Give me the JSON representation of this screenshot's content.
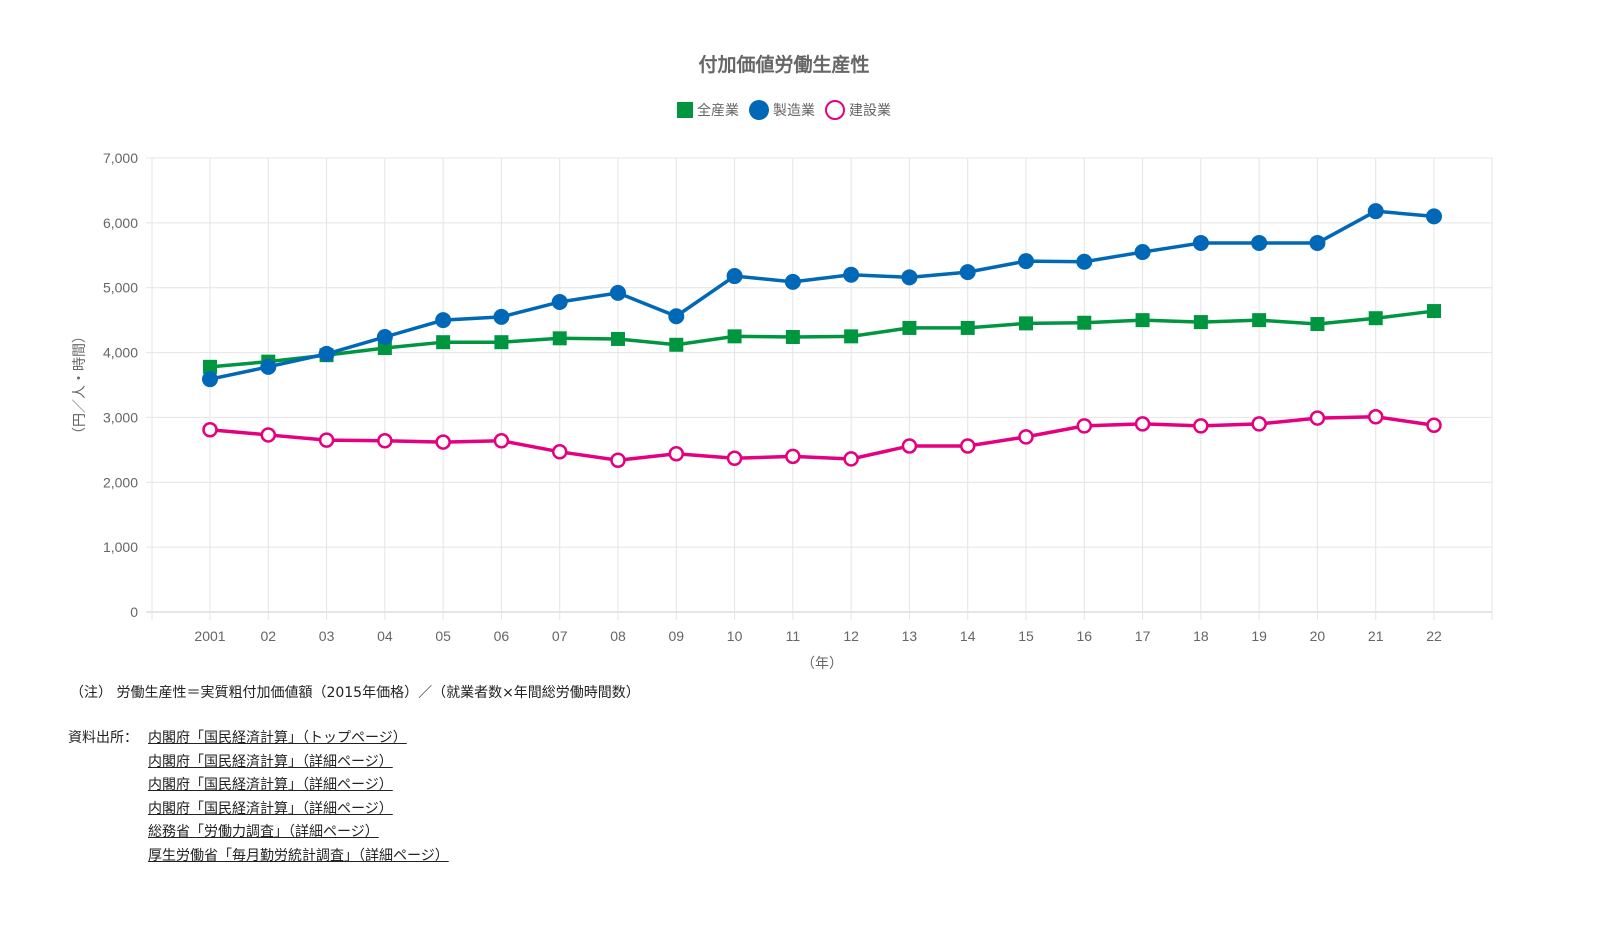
{
  "chart_data": {
    "type": "line",
    "title": "付加価値労働生産性",
    "xlabel": "（年）",
    "ylabel": "（円／人・時間）",
    "ylim": [
      0,
      7000
    ],
    "yticks": [
      "0",
      "1,000",
      "2,000",
      "3,000",
      "4,000",
      "5,000",
      "6,000",
      "7,000"
    ],
    "categories": [
      "2001",
      "02",
      "03",
      "04",
      "05",
      "06",
      "07",
      "08",
      "09",
      "10",
      "11",
      "12",
      "13",
      "14",
      "15",
      "16",
      "17",
      "18",
      "19",
      "20",
      "21",
      "22"
    ],
    "grid": true,
    "legend_position": "top",
    "series": [
      {
        "name": "全産業",
        "color": "#009640",
        "marker": "square",
        "values": [
          3780,
          3860,
          3960,
          4070,
          4160,
          4160,
          4220,
          4210,
          4120,
          4250,
          4240,
          4250,
          4380,
          4380,
          4450,
          4460,
          4500,
          4470,
          4500,
          4440,
          4530,
          4640
        ]
      },
      {
        "name": "製造業",
        "color": "#0068b7",
        "marker": "circle",
        "values": [
          3590,
          3780,
          3980,
          4240,
          4500,
          4550,
          4780,
          4920,
          4560,
          5180,
          5090,
          5200,
          5160,
          5240,
          5410,
          5400,
          5550,
          5690,
          5690,
          5690,
          6180,
          6100
        ]
      },
      {
        "name": "建設業",
        "color": "#e4007f",
        "marker": "circle-open",
        "values": [
          2810,
          2730,
          2650,
          2640,
          2620,
          2640,
          2470,
          2340,
          2440,
          2370,
          2400,
          2360,
          2560,
          2560,
          2700,
          2870,
          2900,
          2870,
          2900,
          2990,
          3010,
          2880
        ]
      }
    ]
  },
  "note": "（注） 労働生産性＝実質粗付加価値額（2015年価格）／（就業者数×年間総労働時間数）",
  "sources": {
    "label": "資料出所：",
    "links": [
      "内閣府「国民経済計算」（トップページ）",
      "内閣府「国民経済計算」（詳細ページ）",
      "内閣府「国民経済計算」（詳細ページ）",
      "内閣府「国民経済計算」（詳細ページ）",
      "総務省「労働力調査」（詳細ページ）",
      "厚生労働省「毎月勤労統計調査」（詳細ページ）"
    ]
  }
}
